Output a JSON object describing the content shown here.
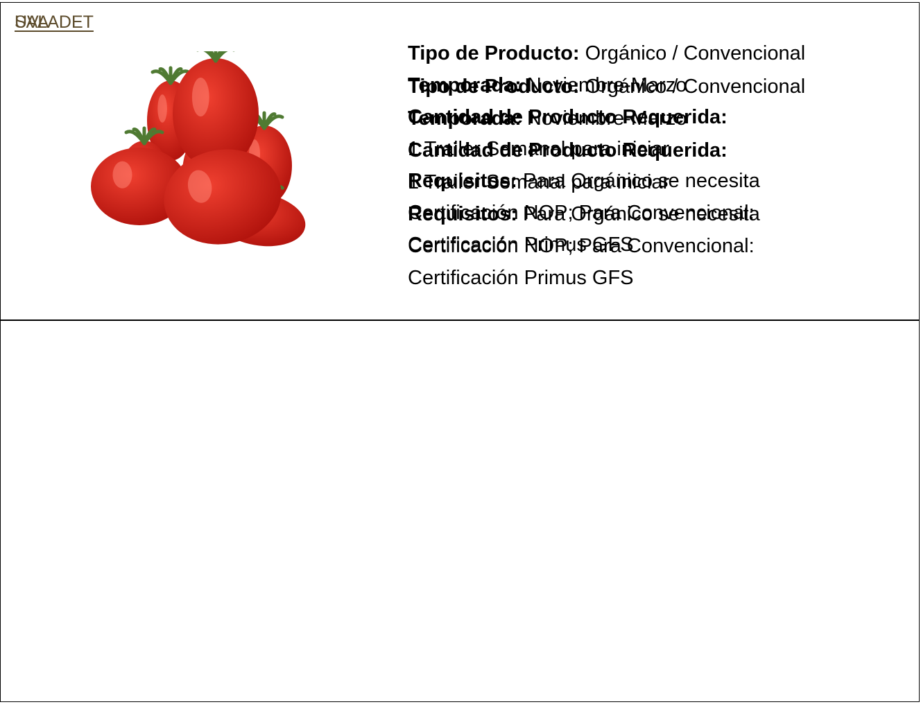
{
  "table": {
    "rows": [
      {
        "title": "UVA",
        "details": [
          {
            "label": "Tipo de Producto:",
            "value": "Orgánico / Convencional"
          },
          {
            "label": "Temporada:",
            "value": "Noviembre-Marzo"
          },
          {
            "label": "Cantidad de Producto Requerida:"
          },
          {
            "value": "1 Trailer Semanal para iniciar"
          },
          {
            "label": "Requisitos:",
            "value": "Para Orgánico se necesita Certificación NOP; Para Convencional: Certificación Primus GFS"
          }
        ]
      },
      {
        "title": "SALADET",
        "details": [
          {
            "label": "Tipo de Producto:",
            "value": "Orgánico / Convencional"
          },
          {
            "label": "Temporada:",
            "value": "Noviembre-Marzo"
          },
          {
            "label": "Cantidad de Producto Requerida:"
          },
          {
            "value": "1 Trailer Semanal para iniciar"
          },
          {
            "label": "Requisitos:",
            "value": "Para Orgánico se necesita Certificación NOP; Para Convencional: Certificación Primus GFS"
          }
        ]
      }
    ]
  }
}
